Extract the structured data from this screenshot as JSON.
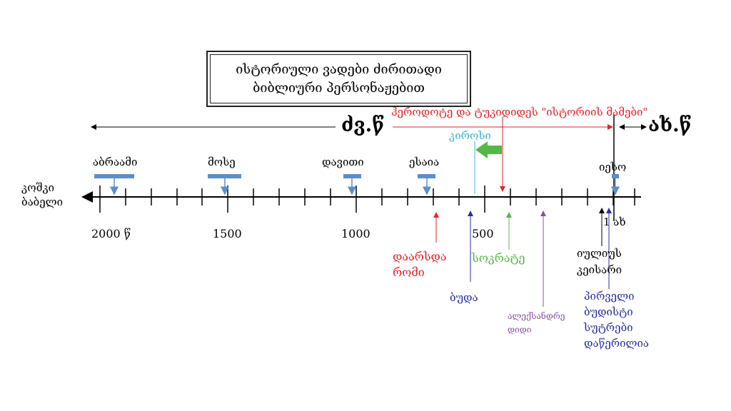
{
  "title": {
    "line1": "ისტორიული ვადები ძირითადი",
    "line2": "ბიბლიური პერსონაჟებით"
  },
  "eras": {
    "bc": "ძვ.წ",
    "ad": "ახ.წ"
  },
  "herodotus": "ჰეროდოტე და ტუკიდიდეს \"ისტორიის მამები\"",
  "tower_of_babel": {
    "line1": "კოშკი",
    "line2": "ბაბელი"
  },
  "scale_labels": {
    "y2000": "2000 წ",
    "y1500": "1500",
    "y1000": "1000",
    "y500": "500",
    "ad1": "1 ახ"
  },
  "figures": {
    "abraham": "აბრაამი",
    "moses": "მოსე",
    "david": "დავითი",
    "isaiah": "ესაია",
    "jesus": "იესო",
    "cyrus": "კიროსი"
  },
  "events": {
    "rome_line1": "დაარსდა",
    "rome_line2": "რომი",
    "socrates": "სოკრატე",
    "buddha": "ბუდა",
    "alexander_line1": "ალექსანდრე",
    "alexander_line2": "დიდი",
    "caesar_line1": "იულიუს",
    "caesar_line2": "კეისარი",
    "sutras_line1": "პირველი",
    "sutras_line2": "ბუდისტი",
    "sutras_line3": "სუტრები",
    "sutras_line4": "დაწერილია"
  },
  "colors": {
    "bar": "#5b8fc8",
    "red": "#e0262b",
    "cyan": "#3bb3d6",
    "green": "#54b846",
    "purple": "#8a4fa3",
    "navy": "#2c2fa0"
  }
}
